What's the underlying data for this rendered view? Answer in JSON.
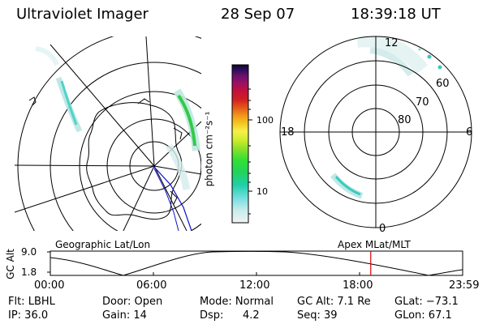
{
  "header": {
    "instrument": "Ultraviolet Imager",
    "date": "28 Sep 07",
    "time": "18:39:18 UT"
  },
  "colorbar": {
    "unit_label": "photon cm⁻²s⁻¹",
    "ticks": [
      "100",
      "10"
    ],
    "scale": "log"
  },
  "polar_plot": {
    "mlt_labels": {
      "top": "12",
      "left": "18",
      "right": "6",
      "bottom": "0"
    },
    "lat_labels": [
      "60",
      "70",
      "80"
    ]
  },
  "timeline": {
    "left_label": "Geographic Lat/Lon",
    "right_label": "Apex MLat/MLT",
    "axis_title": "GC Alt",
    "y_ticks": [
      "9.0",
      "1.8"
    ],
    "x_ticks": [
      "00:00",
      "06:00",
      "12:00",
      "18:00",
      "23:59"
    ],
    "marker_time": "18:39",
    "marker_color": "#e00000"
  },
  "status": {
    "flt": "Flt: LBHL",
    "ip": "IP: 36.0",
    "door": "Door: Open",
    "gain": "Gain: 14",
    "mode": "Mode: Normal",
    "dsp_label": "Dsp:",
    "dsp_value": "4.2",
    "gc_alt": "GC Alt: 7.1 Re",
    "seq": "Seq: 39",
    "glat": "GLat: −73.1",
    "glon": "GLon:  67.1"
  }
}
